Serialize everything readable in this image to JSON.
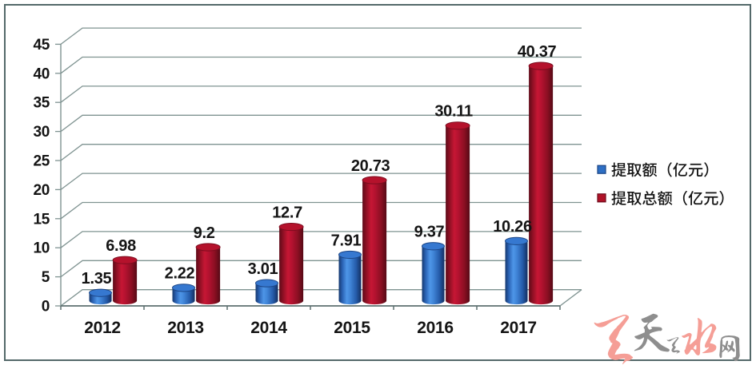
{
  "chart_data": {
    "type": "bar",
    "style": "3d-cylinder",
    "categories": [
      "2012",
      "2013",
      "2014",
      "2015",
      "2016",
      "2017"
    ],
    "series": [
      {
        "name": "提取额（亿元）",
        "values": [
          1.35,
          2.22,
          3.01,
          7.91,
          9.37,
          10.26
        ],
        "value_labels": [
          "1.35",
          "2.22",
          "3.01",
          "7.91",
          "9.37",
          "10.26"
        ],
        "color": "#3f83d6",
        "swatch_color": "#2e6fc4"
      },
      {
        "name": "提取总额（亿元）",
        "values": [
          6.98,
          9.2,
          12.7,
          20.73,
          30.11,
          40.37
        ],
        "value_labels": [
          "6.98",
          "9.2",
          "12.7",
          "20.73",
          "30.11",
          "40.37"
        ],
        "color": "#b41230",
        "swatch_color": "#b01228"
      }
    ],
    "title": "",
    "xlabel": "",
    "ylabel": "",
    "ylim": [
      0,
      45
    ],
    "ytick_step": 5,
    "ytick_labels": [
      "0",
      "5",
      "10",
      "15",
      "20",
      "25",
      "30",
      "35",
      "40",
      "45"
    ],
    "grid": true,
    "legend_position": "right"
  },
  "legend": {
    "items": [
      {
        "label": "提取额（亿元）",
        "color": "#2e6fc4"
      },
      {
        "label": "提取总额（亿元）",
        "color": "#b01228"
      }
    ]
  },
  "watermark": {
    "text": "天天天水网",
    "pink": "#f59e96",
    "gray": "#8e8e8e"
  },
  "frame": {
    "border_color": "#54696a",
    "background": "#ffffff"
  },
  "grid_color": "#7f9391",
  "text_color": "#141414"
}
